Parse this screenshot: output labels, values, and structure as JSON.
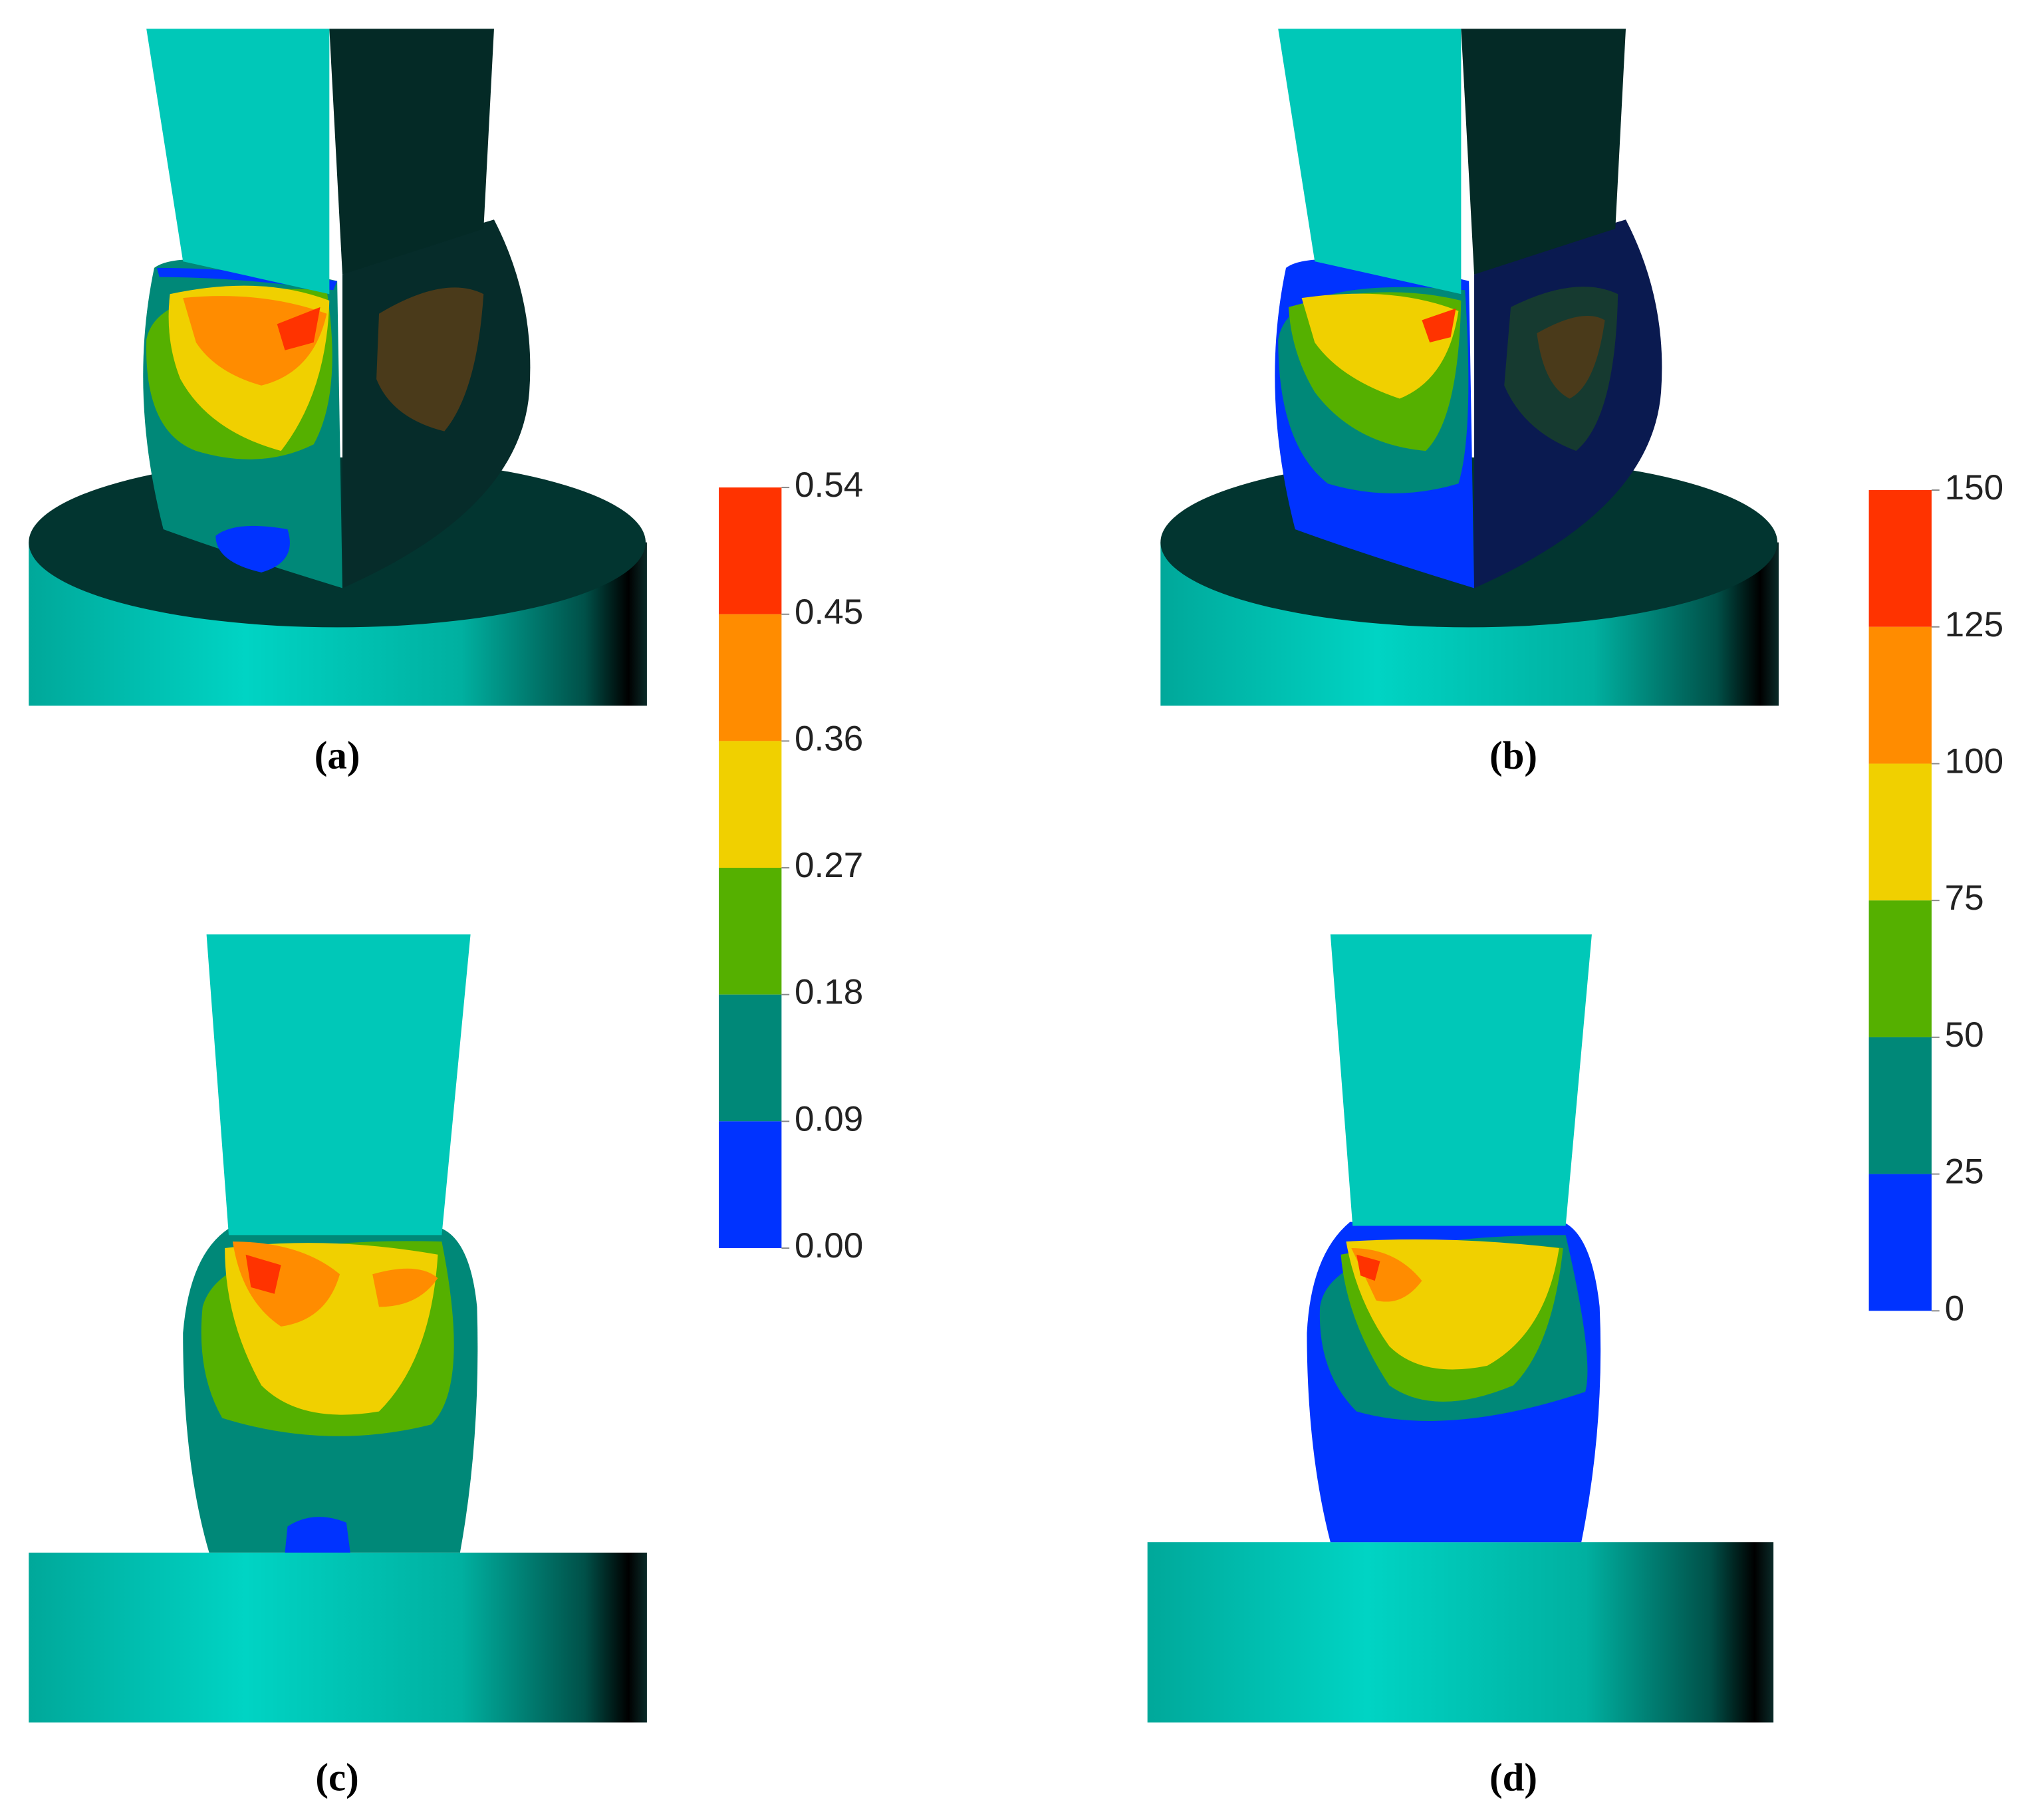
{
  "panels": [
    {
      "label": "(a)"
    },
    {
      "label": "(b)"
    },
    {
      "label": "(c)"
    },
    {
      "label": "(d)"
    }
  ],
  "colorbars": [
    {
      "ylim": [
        0,
        0.54
      ],
      "ticks": [
        0.54,
        0.45,
        0.36,
        0.27,
        0.18,
        0.09,
        {
          "value": 0,
          "label": "0.00"
        }
      ],
      "colors": [
        "#ff3300",
        "#ff8c00",
        "#f0d000",
        "#55b000",
        "#008878",
        "#0033ff"
      ]
    },
    {
      "ylim": [
        0,
        150
      ],
      "ticks": [
        150,
        125,
        100,
        75,
        50,
        25,
        0
      ],
      "colors": [
        "#ff3300",
        "#ff8c00",
        "#f0d000",
        "#55b000",
        "#008878",
        "#0033ff"
      ]
    }
  ]
}
